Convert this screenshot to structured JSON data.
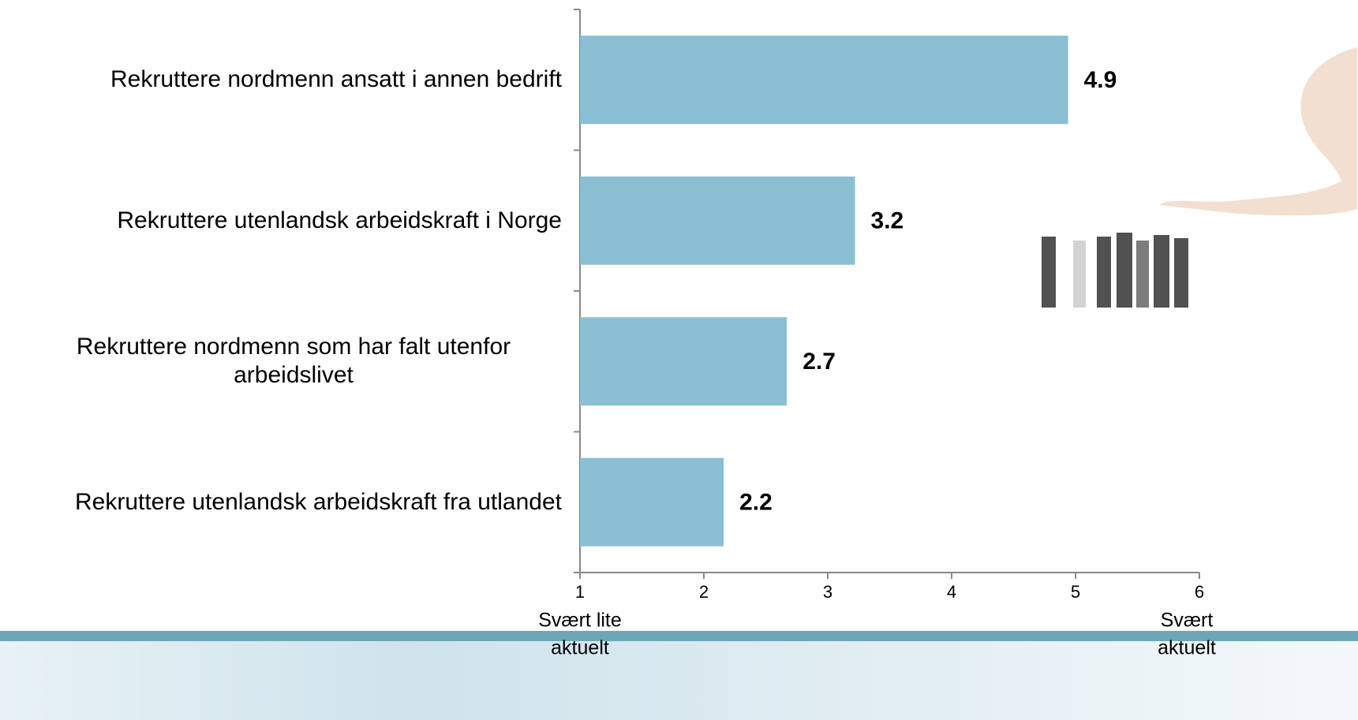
{
  "chart_data": {
    "type": "bar",
    "orientation": "horizontal",
    "categories": [
      "Rekruttere nordmenn ansatt i annen bedrift",
      "Rekruttere utenlandsk arbeidskraft i Norge",
      "Rekruttere nordmenn som har falt utenfor arbeidslivet",
      "Rekruttere utenlandsk arbeidskraft fra utlandet"
    ],
    "values": [
      4.94,
      3.22,
      2.67,
      2.16
    ],
    "value_labels": [
      "4.9",
      "3.2",
      "2.7",
      "2.2"
    ],
    "color": "#8bbfd4",
    "xlim": [
      1,
      6
    ],
    "xticks": [
      1,
      2,
      3,
      4,
      5,
      6
    ],
    "x_low_label": [
      "Svært lite",
      "aktuelt"
    ],
    "x_high_label": [
      "Svært",
      "aktuelt"
    ],
    "grid": false
  }
}
